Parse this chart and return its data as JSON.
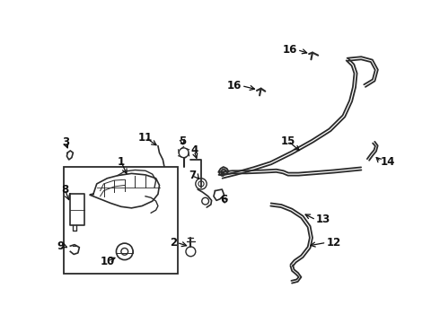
{
  "background_color": "#ffffff",
  "line_color": "#2a2a2a",
  "text_color": "#111111",
  "fig_width": 4.9,
  "fig_height": 3.6,
  "dpi": 100
}
